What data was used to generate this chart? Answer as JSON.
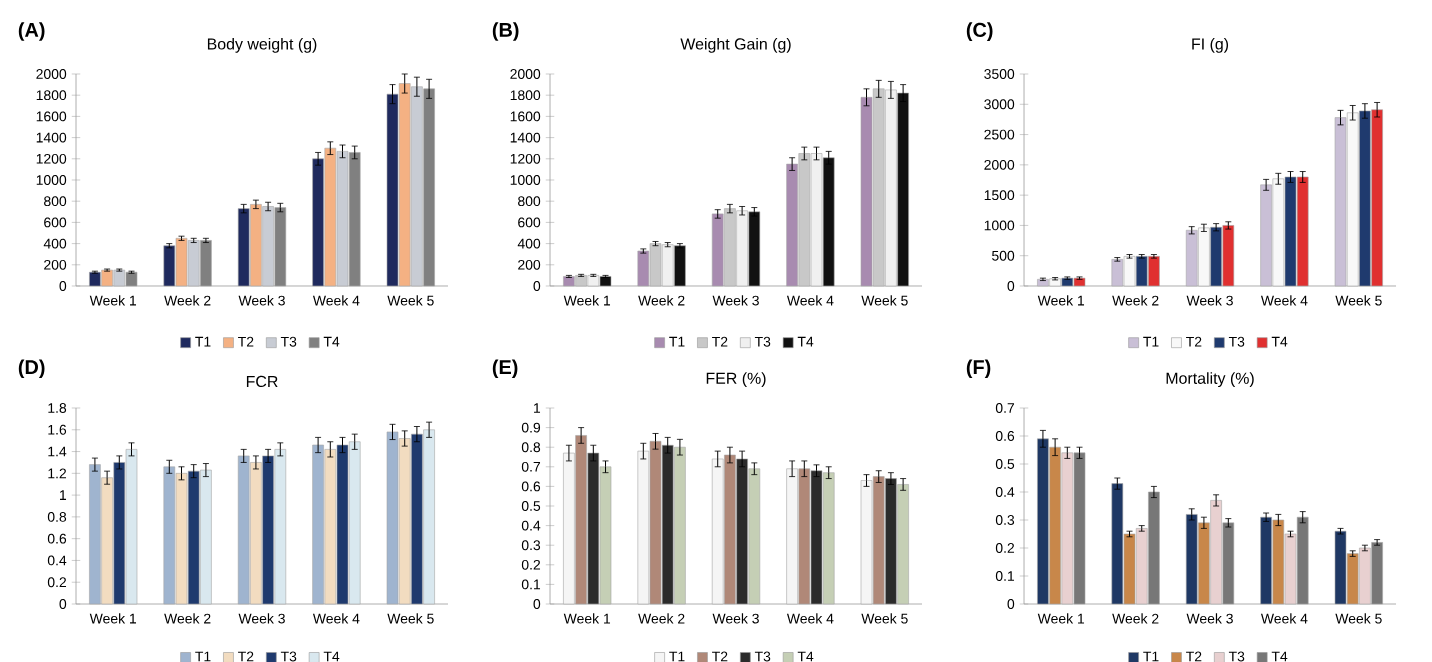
{
  "chart_data": [
    {
      "type": "bar",
      "title": "Body weight (g)",
      "annotations": [
        "(A)"
      ],
      "categories": [
        "Week 1",
        "Week 2",
        "Week 3",
        "Week 4",
        "Week 5"
      ],
      "ylim": [
        0,
        2000
      ],
      "yticks": [
        0,
        200,
        400,
        600,
        800,
        1000,
        1200,
        1400,
        1600,
        1800,
        2000
      ],
      "legend": "bottom",
      "grid": false,
      "series": [
        {
          "name": "T1",
          "color": "#1f2a5e",
          "values": [
            130,
            380,
            730,
            1200,
            1810
          ],
          "errors": [
            10,
            20,
            40,
            60,
            90
          ]
        },
        {
          "name": "T2",
          "color": "#f4b183",
          "values": [
            150,
            450,
            770,
            1300,
            1910
          ],
          "errors": [
            10,
            20,
            40,
            60,
            90
          ]
        },
        {
          "name": "T3",
          "color": "#c8ccd4",
          "values": [
            150,
            430,
            750,
            1270,
            1880
          ],
          "errors": [
            10,
            20,
            40,
            60,
            90
          ]
        },
        {
          "name": "T4",
          "color": "#808080",
          "values": [
            130,
            430,
            740,
            1260,
            1860
          ],
          "errors": [
            10,
            20,
            40,
            60,
            90
          ]
        }
      ]
    },
    {
      "type": "bar",
      "title": "Weight Gain (g)",
      "annotations": [
        "(B)"
      ],
      "categories": [
        "Week 1",
        "Week 2",
        "Week 3",
        "Week 4",
        "Week 5"
      ],
      "ylim": [
        0,
        2000
      ],
      "yticks": [
        0,
        200,
        400,
        600,
        800,
        1000,
        1200,
        1400,
        1600,
        1800,
        2000
      ],
      "legend": "bottom",
      "grid": false,
      "series": [
        {
          "name": "T1",
          "color": "#a88bb0",
          "values": [
            90,
            330,
            680,
            1150,
            1780
          ],
          "errors": [
            10,
            20,
            40,
            60,
            80
          ]
        },
        {
          "name": "T2",
          "color": "#c8c8c8",
          "values": [
            100,
            400,
            730,
            1250,
            1860
          ],
          "errors": [
            10,
            20,
            40,
            60,
            80
          ]
        },
        {
          "name": "T3",
          "color": "#f0f0f0",
          "values": [
            100,
            390,
            710,
            1250,
            1850
          ],
          "errors": [
            10,
            20,
            40,
            60,
            80
          ]
        },
        {
          "name": "T4",
          "color": "#111111",
          "values": [
            90,
            380,
            700,
            1210,
            1820
          ],
          "errors": [
            10,
            20,
            40,
            60,
            80
          ]
        }
      ]
    },
    {
      "type": "bar",
      "title": "FI (g)",
      "annotations": [
        "(C)"
      ],
      "categories": [
        "Week 1",
        "Week 2",
        "Week 3",
        "Week 4",
        "Week 5"
      ],
      "ylim": [
        0,
        3500
      ],
      "yticks": [
        0,
        500,
        1000,
        1500,
        2000,
        2500,
        3000,
        3500
      ],
      "legend": "bottom",
      "grid": false,
      "series": [
        {
          "name": "T1",
          "color": "#c9bfd6",
          "values": [
            110,
            440,
            920,
            1670,
            2780
          ],
          "errors": [
            20,
            30,
            60,
            90,
            120
          ]
        },
        {
          "name": "T2",
          "color": "#f8f8f8",
          "values": [
            120,
            490,
            960,
            1770,
            2860
          ],
          "errors": [
            20,
            30,
            60,
            90,
            120
          ]
        },
        {
          "name": "T3",
          "color": "#1f3a6e",
          "values": [
            130,
            490,
            970,
            1800,
            2890
          ],
          "errors": [
            20,
            30,
            60,
            90,
            120
          ]
        },
        {
          "name": "T4",
          "color": "#e03030",
          "values": [
            130,
            490,
            1000,
            1800,
            2910
          ],
          "errors": [
            20,
            30,
            60,
            90,
            120
          ]
        }
      ]
    },
    {
      "type": "bar",
      "title": "FCR",
      "annotations": [
        "(D)"
      ],
      "categories": [
        "Week 1",
        "Week 2",
        "Week 3",
        "Week 4",
        "Week 5"
      ],
      "ylim": [
        0,
        1.8
      ],
      "yticks": [
        0,
        0.2,
        0.4,
        0.6,
        0.8,
        1,
        1.2,
        1.4,
        1.6,
        1.8
      ],
      "legend": "bottom",
      "grid": false,
      "series": [
        {
          "name": "T1",
          "color": "#9fb4cf",
          "values": [
            1.28,
            1.26,
            1.36,
            1.46,
            1.58
          ],
          "errors": [
            0.06,
            0.06,
            0.06,
            0.07,
            0.07
          ]
        },
        {
          "name": "T2",
          "color": "#f2dcc0",
          "values": [
            1.16,
            1.2,
            1.3,
            1.42,
            1.52
          ],
          "errors": [
            0.06,
            0.06,
            0.06,
            0.07,
            0.07
          ]
        },
        {
          "name": "T3",
          "color": "#1f3a6e",
          "values": [
            1.3,
            1.22,
            1.36,
            1.46,
            1.56
          ],
          "errors": [
            0.06,
            0.06,
            0.06,
            0.07,
            0.07
          ]
        },
        {
          "name": "T4",
          "color": "#d9e8ef",
          "values": [
            1.42,
            1.23,
            1.42,
            1.49,
            1.6
          ],
          "errors": [
            0.06,
            0.06,
            0.06,
            0.07,
            0.07
          ]
        }
      ]
    },
    {
      "type": "bar",
      "title": "FER (%)",
      "annotations": [
        "(E)"
      ],
      "categories": [
        "Week 1",
        "Week 2",
        "Week 3",
        "Week 4",
        "Week 5"
      ],
      "ylim": [
        0,
        1
      ],
      "yticks": [
        0,
        0.1,
        0.2,
        0.3,
        0.4,
        0.5,
        0.6,
        0.7,
        0.8,
        0.9,
        1
      ],
      "legend": "bottom",
      "grid": false,
      "series": [
        {
          "name": "T1",
          "color": "#f5f5f5",
          "values": [
            0.77,
            0.78,
            0.74,
            0.69,
            0.63
          ],
          "errors": [
            0.04,
            0.04,
            0.04,
            0.04,
            0.03
          ]
        },
        {
          "name": "T2",
          "color": "#b08878",
          "values": [
            0.86,
            0.83,
            0.76,
            0.69,
            0.65
          ],
          "errors": [
            0.04,
            0.04,
            0.04,
            0.04,
            0.03
          ]
        },
        {
          "name": "T3",
          "color": "#2b2b2b",
          "values": [
            0.77,
            0.81,
            0.74,
            0.68,
            0.64
          ],
          "errors": [
            0.04,
            0.04,
            0.04,
            0.03,
            0.03
          ]
        },
        {
          "name": "T4",
          "color": "#c5cfb5",
          "values": [
            0.7,
            0.8,
            0.69,
            0.67,
            0.61
          ],
          "errors": [
            0.03,
            0.04,
            0.03,
            0.03,
            0.03
          ]
        }
      ]
    },
    {
      "type": "bar",
      "title": "Mortality (%)",
      "annotations": [
        "(F)"
      ],
      "categories": [
        "Week 1",
        "Week 2",
        "Week 3",
        "Week 4",
        "Week 5"
      ],
      "ylim": [
        0,
        0.7
      ],
      "yticks": [
        0,
        0.1,
        0.2,
        0.3,
        0.4,
        0.5,
        0.6,
        0.7
      ],
      "legend": "bottom",
      "grid": false,
      "series": [
        {
          "name": "T1",
          "color": "#1f3864",
          "values": [
            0.59,
            0.43,
            0.32,
            0.31,
            0.26
          ],
          "errors": [
            0.03,
            0.02,
            0.02,
            0.015,
            0.01
          ]
        },
        {
          "name": "T2",
          "color": "#c8874a",
          "values": [
            0.56,
            0.25,
            0.29,
            0.3,
            0.18
          ],
          "errors": [
            0.03,
            0.01,
            0.02,
            0.02,
            0.01
          ]
        },
        {
          "name": "T3",
          "color": "#e8d0d0",
          "values": [
            0.54,
            0.27,
            0.37,
            0.25,
            0.2
          ],
          "errors": [
            0.02,
            0.01,
            0.02,
            0.01,
            0.01
          ]
        },
        {
          "name": "T4",
          "color": "#777777",
          "values": [
            0.54,
            0.4,
            0.29,
            0.31,
            0.22
          ],
          "errors": [
            0.02,
            0.02,
            0.015,
            0.02,
            0.01
          ]
        }
      ]
    }
  ]
}
